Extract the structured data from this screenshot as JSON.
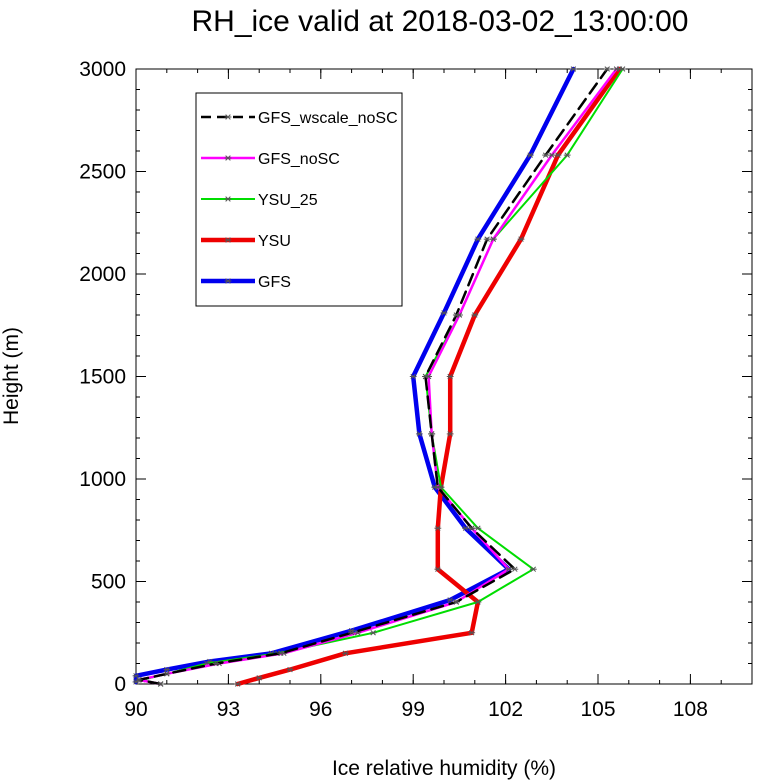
{
  "chart_data": {
    "type": "line",
    "title": "RH_ice valid at 2018-03-02_13:00:00",
    "xlabel": "Ice relative humidity (%)",
    "ylabel": "Height (m)",
    "xlim": [
      90,
      110
    ],
    "ylim": [
      0,
      3000
    ],
    "x_ticks": [
      90,
      93,
      96,
      99,
      102,
      105,
      108
    ],
    "x_tick_labels": [
      "90",
      "93",
      "96",
      "99",
      "102",
      "105",
      "108"
    ],
    "y_ticks": [
      0,
      500,
      1000,
      1500,
      2000,
      2500,
      3000
    ],
    "y_tick_labels": [
      "0",
      "500",
      "1000",
      "1500",
      "2000",
      "2500",
      "3000"
    ],
    "grid": false,
    "legend_position": "top-left",
    "series": [
      {
        "name": "GFS_wscale_noSC",
        "color": "#000000",
        "dashed": true,
        "width": "medium",
        "points": [
          [
            90.8,
            0
          ],
          [
            90.1,
            20
          ],
          [
            91.0,
            50
          ],
          [
            92.6,
            100
          ],
          [
            94.7,
            150
          ],
          [
            97.0,
            250
          ],
          [
            100.4,
            400
          ],
          [
            102.3,
            560
          ],
          [
            100.9,
            760
          ],
          [
            99.8,
            960
          ],
          [
            99.6,
            1220
          ],
          [
            99.4,
            1500
          ],
          [
            100.4,
            1800
          ],
          [
            101.4,
            2170
          ],
          [
            103.3,
            2580
          ],
          [
            105.3,
            3000
          ]
        ]
      },
      {
        "name": "GFS_noSC",
        "color": "#ff00ff",
        "dashed": false,
        "width": "medium",
        "points": [
          [
            90.8,
            0
          ],
          [
            90.1,
            20
          ],
          [
            91.0,
            50
          ],
          [
            92.7,
            100
          ],
          [
            94.8,
            150
          ],
          [
            97.2,
            250
          ],
          [
            100.4,
            400
          ],
          [
            102.1,
            560
          ],
          [
            100.9,
            760
          ],
          [
            99.8,
            960
          ],
          [
            99.6,
            1220
          ],
          [
            99.5,
            1500
          ],
          [
            100.5,
            1800
          ],
          [
            101.6,
            2170
          ],
          [
            103.5,
            2580
          ],
          [
            105.6,
            3000
          ]
        ]
      },
      {
        "name": "YSU_25",
        "color": "#00dd00",
        "dashed": false,
        "width": "thin",
        "points": [
          [
            90.8,
            0
          ],
          [
            90.2,
            20
          ],
          [
            91.0,
            50
          ],
          [
            92.3,
            100
          ],
          [
            94.6,
            150
          ],
          [
            97.7,
            250
          ],
          [
            101.1,
            400
          ],
          [
            102.9,
            560
          ],
          [
            101.1,
            760
          ],
          [
            99.9,
            960
          ],
          [
            99.6,
            1220
          ],
          [
            99.4,
            1500
          ],
          [
            100.5,
            1800
          ],
          [
            101.6,
            2170
          ],
          [
            104.0,
            2580
          ],
          [
            105.8,
            3000
          ]
        ]
      },
      {
        "name": "YSU",
        "color": "#ee0000",
        "dashed": false,
        "width": "thick",
        "points": [
          [
            93.3,
            0
          ],
          [
            94.0,
            30
          ],
          [
            95.0,
            70
          ],
          [
            96.8,
            150
          ],
          [
            100.9,
            250
          ],
          [
            101.1,
            400
          ],
          [
            99.8,
            560
          ],
          [
            99.8,
            760
          ],
          [
            99.9,
            960
          ],
          [
            100.2,
            1220
          ],
          [
            100.2,
            1500
          ],
          [
            101.0,
            1800
          ],
          [
            102.5,
            2170
          ],
          [
            103.7,
            2580
          ],
          [
            105.7,
            3000
          ]
        ]
      },
      {
        "name": "GFS",
        "color": "#0000ee",
        "dashed": false,
        "width": "thick",
        "points": [
          [
            90.0,
            10
          ],
          [
            90.0,
            40
          ],
          [
            91.0,
            70
          ],
          [
            92.4,
            110
          ],
          [
            94.4,
            150
          ],
          [
            97.0,
            260
          ],
          [
            100.2,
            410
          ],
          [
            102.1,
            560
          ],
          [
            100.7,
            760
          ],
          [
            99.7,
            960
          ],
          [
            99.2,
            1220
          ],
          [
            99.0,
            1500
          ],
          [
            100.0,
            1810
          ],
          [
            101.1,
            2170
          ],
          [
            102.8,
            2580
          ],
          [
            104.2,
            3000
          ]
        ]
      }
    ]
  }
}
